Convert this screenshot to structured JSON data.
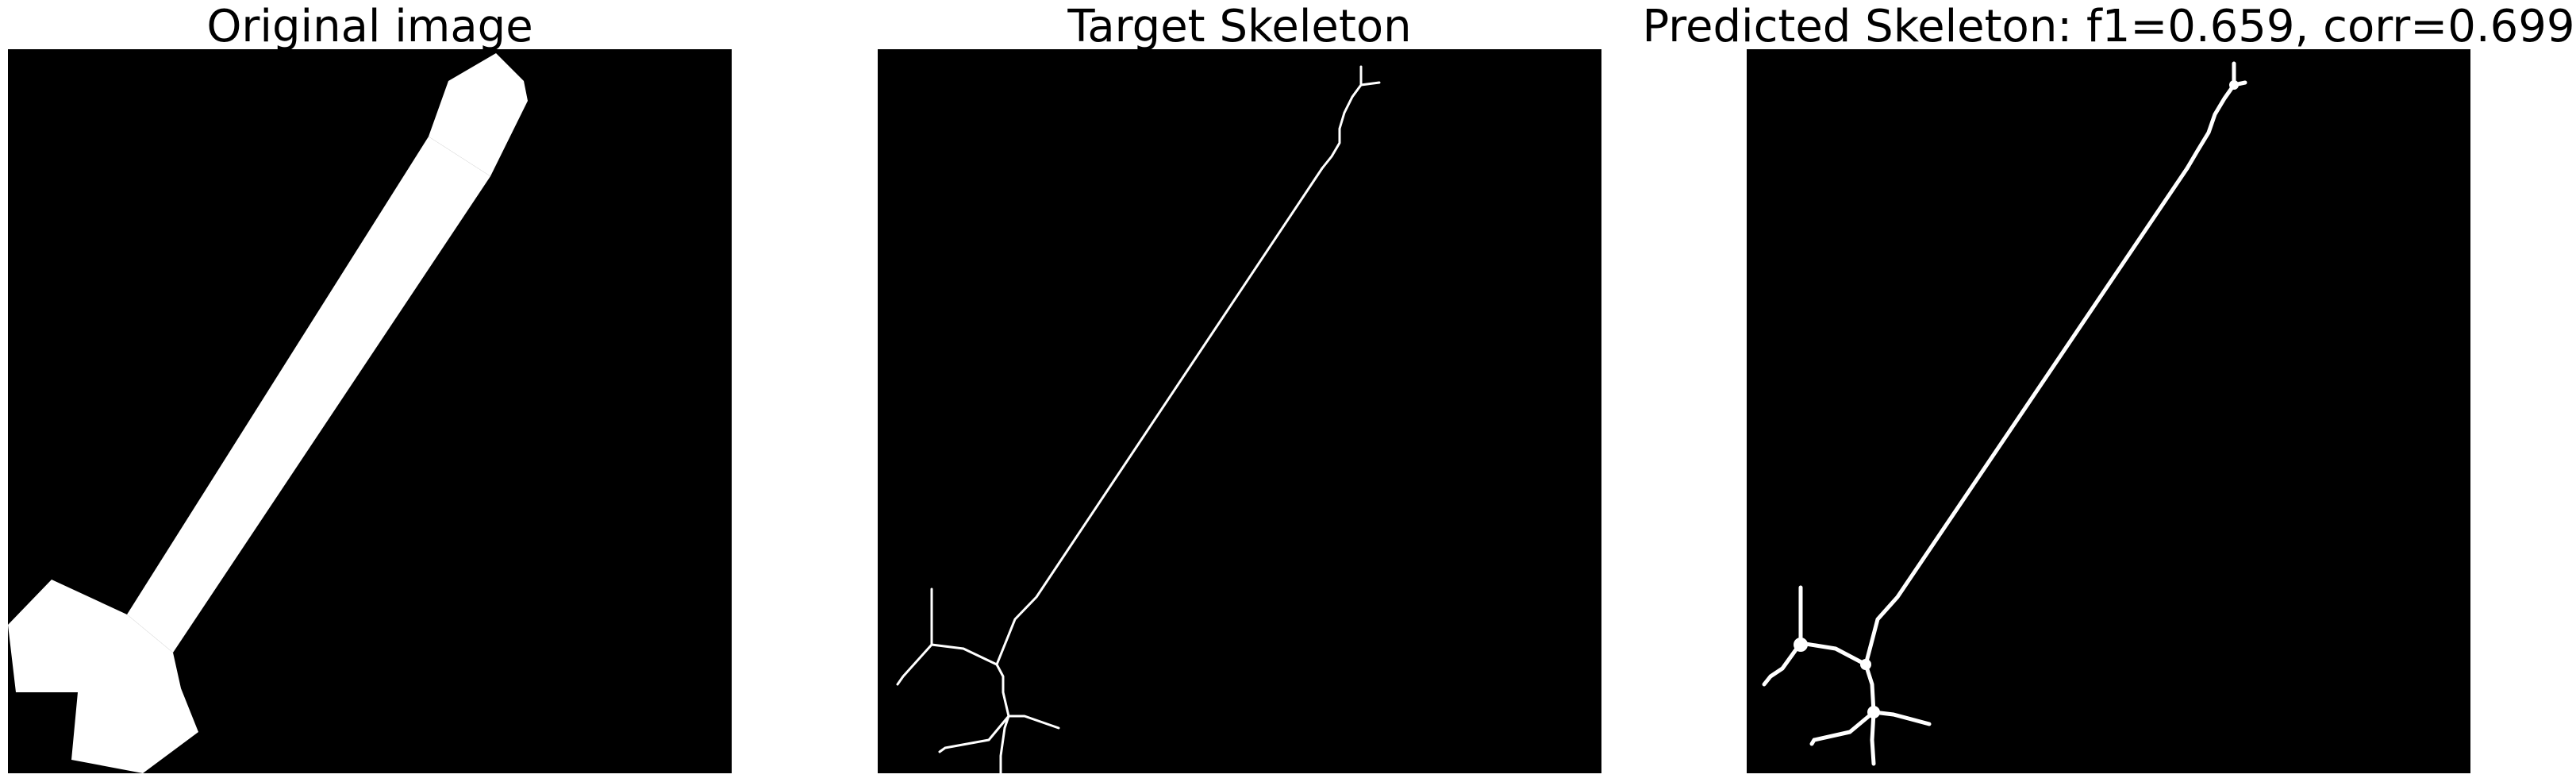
{
  "figure": {
    "panels": [
      {
        "title": "Original image"
      },
      {
        "title": "Target Skeleton"
      },
      {
        "title": "Predicted Skeleton: f1=0.659, corr=0.699"
      }
    ],
    "colors": {
      "background": "#ffffff",
      "image_background": "#000000",
      "foreground": "#ffffff"
    }
  }
}
